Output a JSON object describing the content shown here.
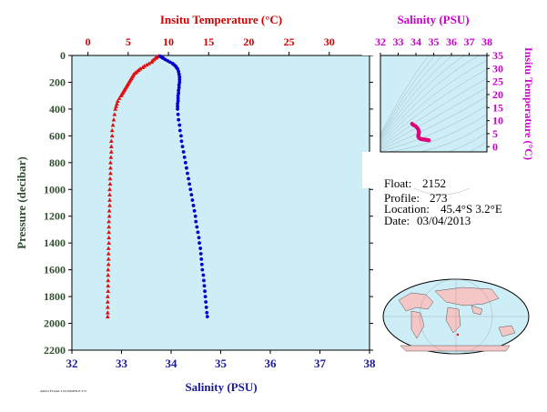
{
  "top_axis_title": "Insitu Temperature (°C)",
  "bottom_axis_title": "Salinity (PSU)",
  "left_axis_title": "Pressure (decibar)",
  "inset_top_title": "Salinity (PSU)",
  "inset_right_title": "Insitu Temperature (°C)",
  "footer_small": "ARGO FLOAT 2152 PROFILE 273",
  "info": {
    "float_label": "Float:",
    "float_value": "2152",
    "profile_label": "Profile:",
    "profile_value": "273",
    "location_label": "Location:",
    "location_value": "45.4°S   3.2°E",
    "date_label": "Date:",
    "date_value": "03/04/2013"
  },
  "colors": {
    "temperature": "#dd1111",
    "salinity": "#0000cc",
    "ts_curve": "#e0007a",
    "panel_bg": "#cdeef7",
    "land": "#f4c6c6"
  },
  "chart_data": [
    {
      "type": "scatter",
      "name": "profile",
      "ylabel": "Pressure (decibar)",
      "ylim": [
        2200,
        0
      ],
      "y_ticks": [
        "0",
        "200",
        "400",
        "600",
        "800",
        "1000",
        "1200",
        "1400",
        "1600",
        "1800",
        "2000",
        "2200"
      ],
      "temperature_axis": {
        "label": "Insitu Temperature (°C)",
        "xlim": [
          -2,
          35
        ],
        "ticks": [
          "0",
          "5",
          "10",
          "15",
          "20",
          "25",
          "30",
          "35"
        ]
      },
      "salinity_axis": {
        "label": "Salinity (PSU)",
        "xlim": [
          32,
          38
        ],
        "ticks": [
          "32",
          "33",
          "34",
          "35",
          "36",
          "37",
          "38"
        ]
      },
      "temperature": {
        "pressure": [
          5,
          10,
          15,
          20,
          30,
          40,
          50,
          60,
          70,
          80,
          90,
          100,
          110,
          120,
          130,
          140,
          150,
          160,
          170,
          180,
          190,
          200,
          210,
          220,
          230,
          240,
          250,
          260,
          270,
          280,
          290,
          300,
          320,
          340,
          360,
          380,
          400,
          440,
          480,
          520,
          560,
          600,
          640,
          680,
          720,
          760,
          800,
          840,
          880,
          920,
          960,
          1000,
          1040,
          1080,
          1120,
          1160,
          1200,
          1240,
          1280,
          1320,
          1360,
          1400,
          1440,
          1480,
          1520,
          1560,
          1600,
          1640,
          1680,
          1720,
          1760,
          1800,
          1840,
          1880,
          1920,
          1950
        ],
        "values": [
          8.8,
          8.6,
          8.5,
          8.4,
          8.2,
          8.0,
          7.9,
          7.6,
          7.3,
          7.0,
          6.8,
          6.5,
          6.3,
          6.1,
          5.9,
          5.7,
          5.6,
          5.5,
          5.4,
          5.3,
          5.2,
          5.1,
          5.0,
          4.9,
          4.8,
          4.7,
          4.6,
          4.5,
          4.4,
          4.3,
          4.2,
          4.1,
          3.9,
          3.7,
          3.6,
          3.5,
          3.4,
          3.3,
          3.2,
          3.1,
          3.0,
          3.0,
          2.9,
          2.9,
          2.9,
          2.85,
          2.8,
          2.8,
          2.8,
          2.75,
          2.75,
          2.7,
          2.7,
          2.7,
          2.7,
          2.65,
          2.65,
          2.6,
          2.6,
          2.6,
          2.6,
          2.6,
          2.55,
          2.55,
          2.55,
          2.55,
          2.5,
          2.5,
          2.5,
          2.5,
          2.5,
          2.45,
          2.45,
          2.45,
          2.45,
          2.45
        ]
      },
      "salinity": {
        "pressure": [
          5,
          10,
          15,
          20,
          30,
          40,
          50,
          60,
          70,
          80,
          90,
          100,
          120,
          140,
          160,
          180,
          200,
          220,
          240,
          260,
          280,
          300,
          320,
          340,
          360,
          380,
          400,
          440,
          480,
          520,
          560,
          600,
          640,
          680,
          720,
          760,
          800,
          840,
          880,
          920,
          960,
          1000,
          1040,
          1080,
          1120,
          1160,
          1200,
          1240,
          1280,
          1320,
          1360,
          1400,
          1440,
          1480,
          1520,
          1560,
          1600,
          1640,
          1680,
          1720,
          1760,
          1800,
          1840,
          1880,
          1920,
          1950
        ],
        "values": [
          33.78,
          33.8,
          33.82,
          33.84,
          33.88,
          33.93,
          33.98,
          34.03,
          34.06,
          34.09,
          34.11,
          34.13,
          34.15,
          34.16,
          34.17,
          34.17,
          34.17,
          34.16,
          34.16,
          34.15,
          34.15,
          34.14,
          34.14,
          34.14,
          34.13,
          34.13,
          34.13,
          34.14,
          34.15,
          34.17,
          34.18,
          34.2,
          34.21,
          34.23,
          34.25,
          34.27,
          34.29,
          34.31,
          34.33,
          34.35,
          34.37,
          34.39,
          34.41,
          34.43,
          34.45,
          34.47,
          34.49,
          34.5,
          34.52,
          34.54,
          34.56,
          34.57,
          34.59,
          34.6,
          34.61,
          34.62,
          34.63,
          34.65,
          34.66,
          34.67,
          34.68,
          34.69,
          34.7,
          34.71,
          34.72,
          34.73
        ]
      }
    },
    {
      "type": "scatter",
      "name": "ts_inset",
      "xlabel": "Salinity (PSU)",
      "ylabel": "Insitu Temperature (°C)",
      "xlim": [
        32,
        38
      ],
      "ylim": [
        -2,
        35
      ],
      "x_ticks": [
        "32",
        "33",
        "34",
        "35",
        "36",
        "37",
        "38"
      ],
      "y_ticks": [
        "0",
        "5",
        "10",
        "15",
        "20",
        "25",
        "30",
        "35"
      ],
      "salinity": [
        33.78,
        33.82,
        33.88,
        33.98,
        34.06,
        34.11,
        34.15,
        34.16,
        34.17,
        34.17,
        34.16,
        34.15,
        34.14,
        34.13,
        34.13,
        34.15,
        34.18,
        34.21,
        34.25,
        34.29,
        34.33,
        34.37,
        34.41,
        34.45,
        34.49,
        34.52,
        34.56,
        34.59,
        34.62,
        34.65,
        34.68,
        34.71,
        34.73
      ],
      "temperature": [
        8.8,
        8.5,
        8.2,
        7.9,
        7.3,
        6.8,
        6.3,
        5.9,
        5.6,
        5.3,
        5.1,
        4.8,
        4.5,
        4.2,
        3.9,
        3.6,
        3.4,
        3.2,
        3.0,
        2.9,
        2.9,
        2.8,
        2.8,
        2.75,
        2.7,
        2.7,
        2.65,
        2.6,
        2.6,
        2.55,
        2.5,
        2.5,
        2.45
      ]
    }
  ]
}
